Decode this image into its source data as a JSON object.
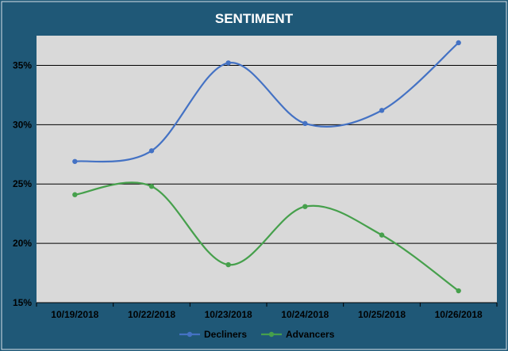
{
  "chart_data": {
    "type": "line",
    "title": "SENTIMENT",
    "categories": [
      "10/19/2018",
      "10/22/2018",
      "10/23/2018",
      "10/24/2018",
      "10/25/2018",
      "10/26/2018"
    ],
    "ylim": [
      0.15,
      0.375
    ],
    "yticks": [
      0.15,
      0.2,
      0.25,
      0.3,
      0.35
    ],
    "ytick_labels": [
      "15%",
      "20%",
      "25%",
      "30%",
      "35%"
    ],
    "grid": true,
    "smooth": true,
    "legend_position": "bottom",
    "series": [
      {
        "name": "Decliners",
        "color": "#4472c4",
        "values": [
          0.269,
          0.278,
          0.352,
          0.301,
          0.312,
          0.369
        ]
      },
      {
        "name": "Advancers",
        "color": "#46a04c",
        "values": [
          0.241,
          0.248,
          0.182,
          0.231,
          0.207,
          0.16
        ]
      }
    ]
  }
}
